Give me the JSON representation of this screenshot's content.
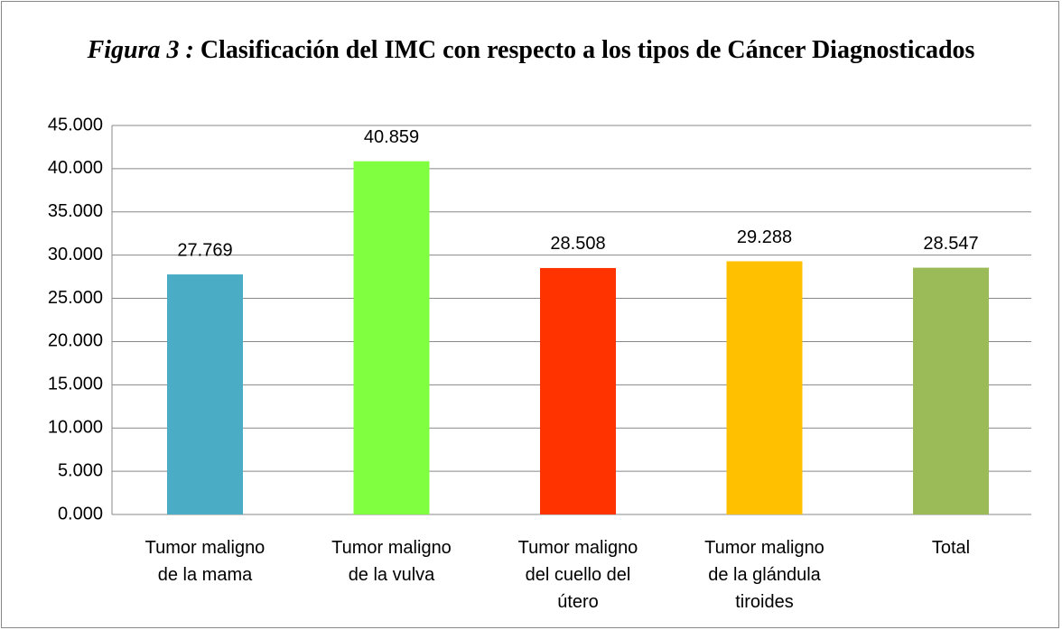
{
  "chart_data": {
    "type": "bar",
    "title_label": "Figura 3 :",
    "title": "Clasificación del IMC con respecto a los tipos de Cáncer Diagnosticados",
    "categories": [
      "Tumor maligno de la mama",
      "Tumor maligno de la vulva",
      "Tumor maligno del cuello del útero",
      "Tumor maligno de la glándula tiroides",
      "Total"
    ],
    "values": [
      27.769,
      40.859,
      28.508,
      29.288,
      28.547
    ],
    "colors": [
      "#4bacc6",
      "#80ff40",
      "#ff3300",
      "#ffc000",
      "#9bbb59"
    ],
    "ylim": [
      0,
      45
    ],
    "yticks": [
      {
        "value": 0,
        "label": "0.000"
      },
      {
        "value": 5,
        "label": "5.000"
      },
      {
        "value": 10,
        "label": "10.000"
      },
      {
        "value": 15,
        "label": "15.000"
      },
      {
        "value": 20,
        "label": "20.000"
      },
      {
        "value": 25,
        "label": "25.000"
      },
      {
        "value": 30,
        "label": "30.000"
      },
      {
        "value": 35,
        "label": "35.000"
      },
      {
        "value": 40,
        "label": "40.000"
      },
      {
        "value": 45,
        "label": "45.000"
      }
    ],
    "grid": true
  }
}
